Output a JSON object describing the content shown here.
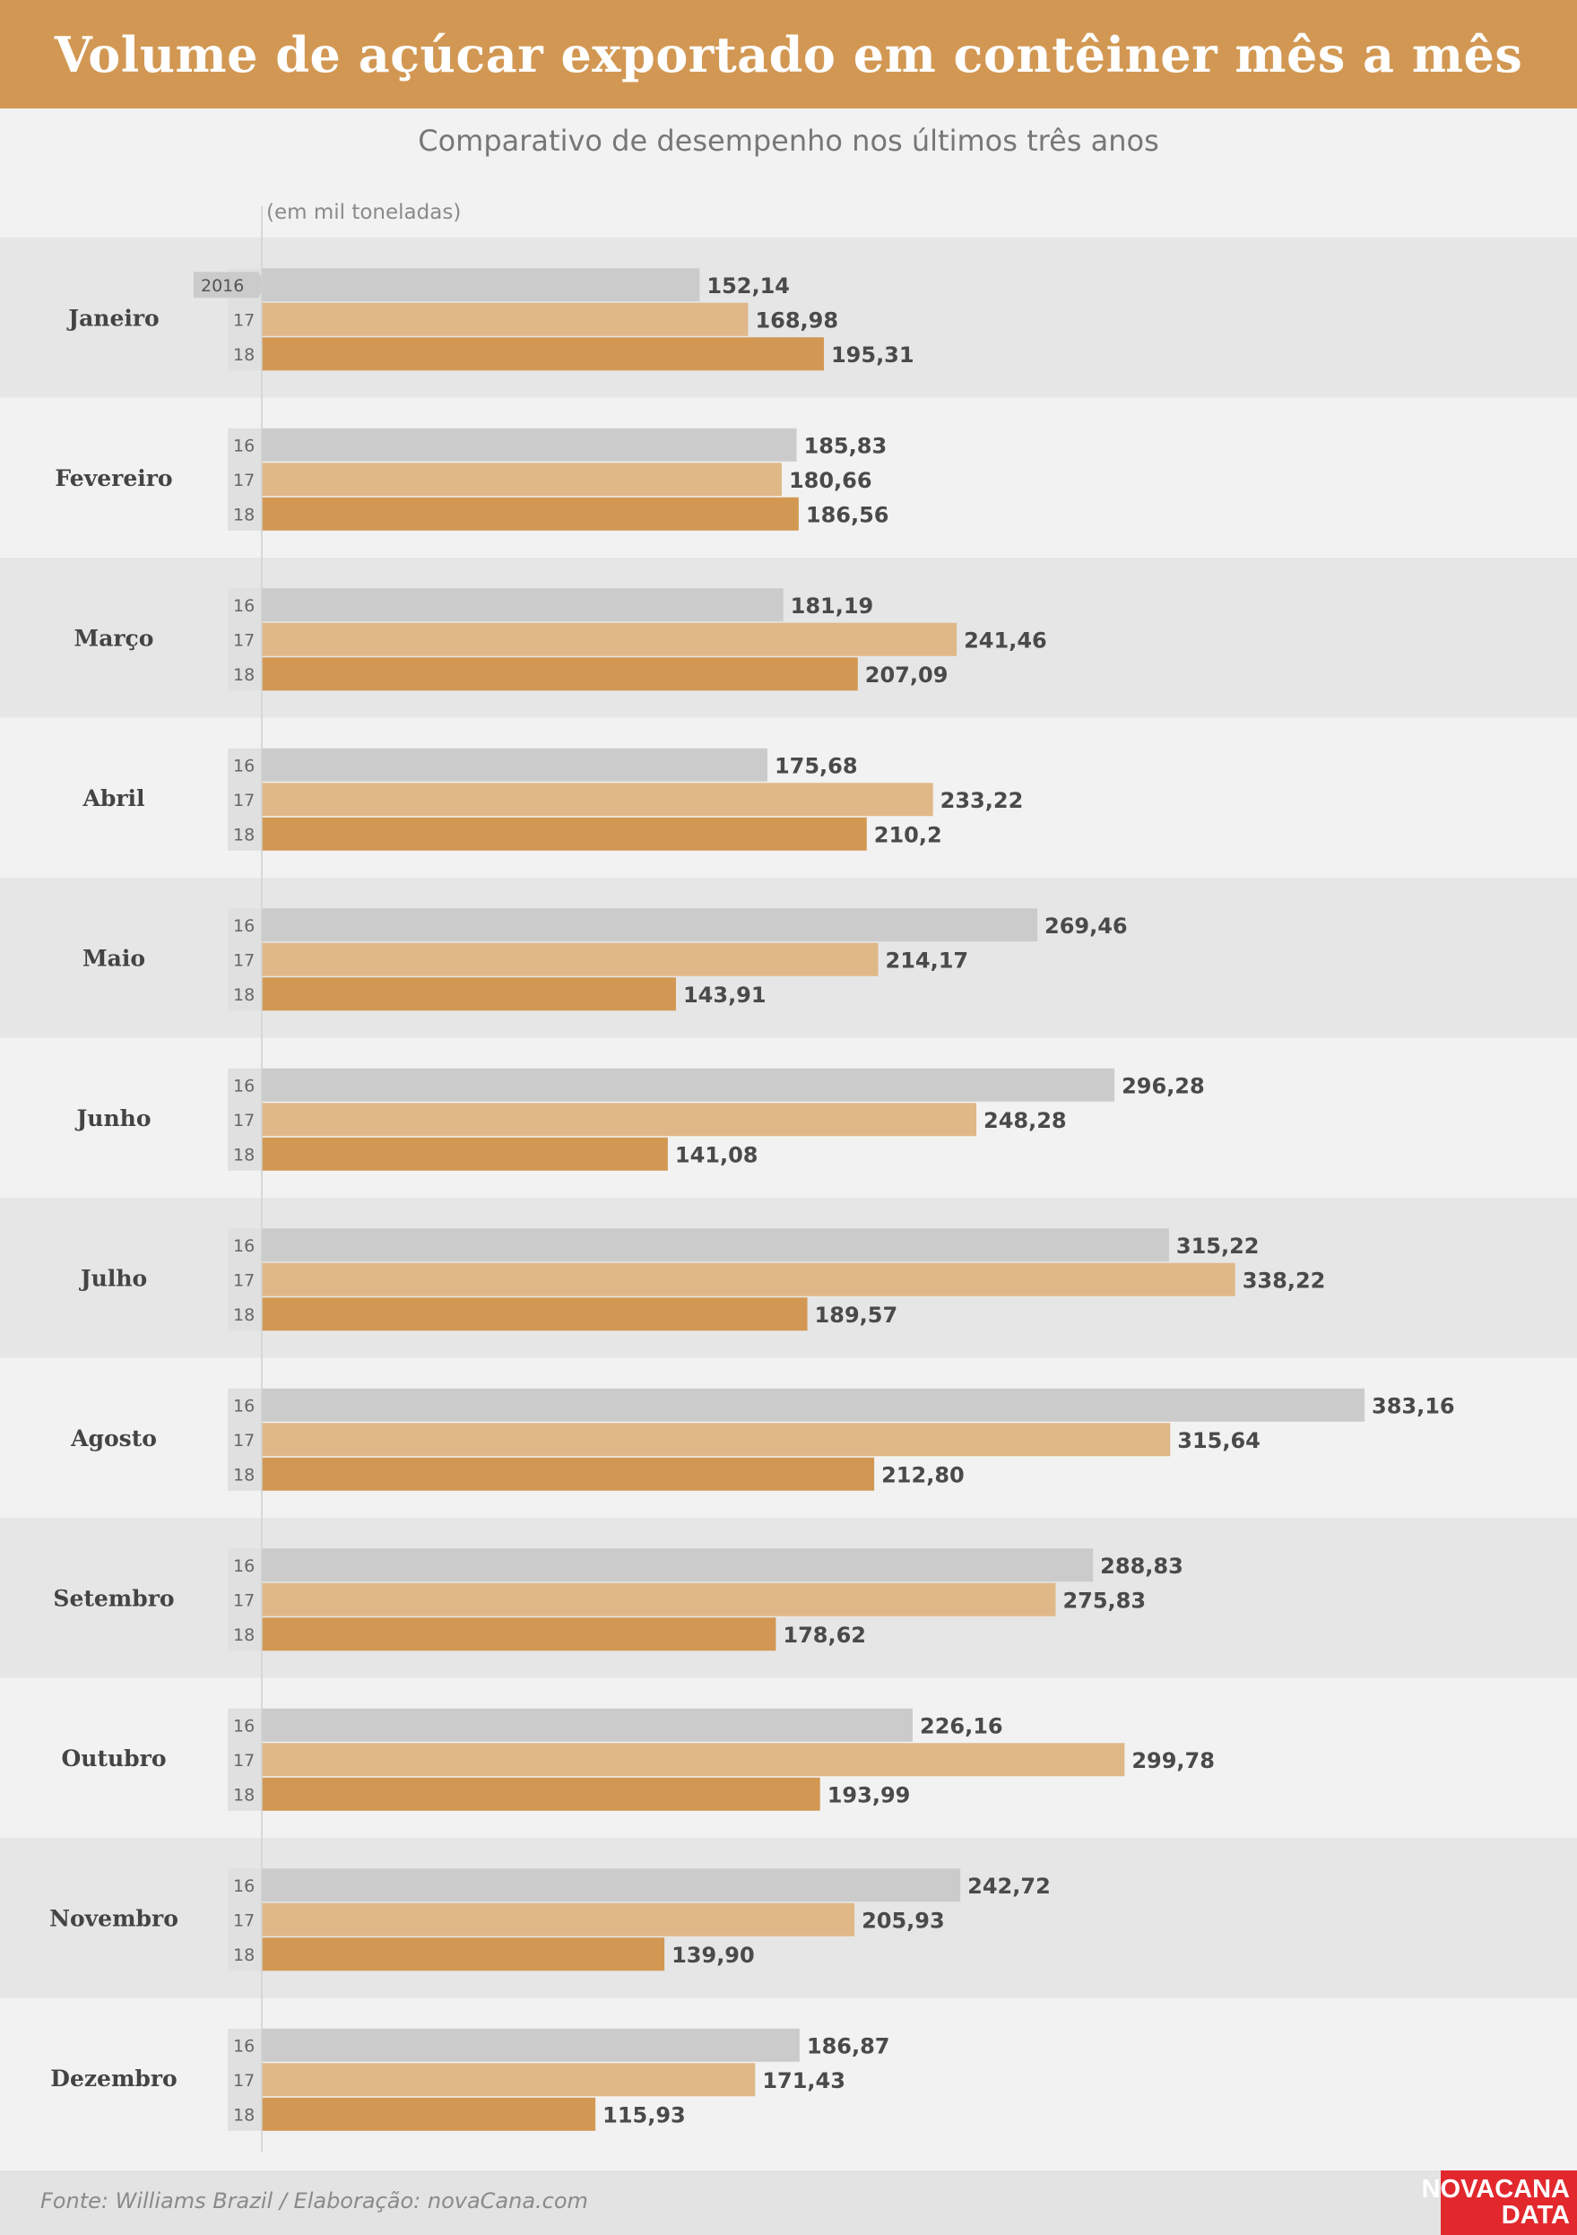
{
  "title": "Volume de açúcar exportado em contêiner mês a mês",
  "subtitle": "Comparativo de desempenho nos últimos três anos",
  "unit_note": "(em mil toneladas)",
  "source": "Fonte: Williams Brazil / Elaboração: novaCana.com",
  "logo": {
    "line1": "NOVACANA",
    "line2": "DATA"
  },
  "colors": {
    "header_bg": "#d29853",
    "series_2016": "#cbcbcb",
    "series_2017": "#e0b888",
    "series_2018": "#d29853",
    "band_dark": "#e6e6e6",
    "band_light": "#f2f2f2",
    "logo_bg": "#e2282d"
  },
  "chart_data": {
    "type": "bar",
    "orientation": "horizontal",
    "unit": "mil toneladas",
    "categories": [
      "Janeiro",
      "Fevereiro",
      "Março",
      "Abril",
      "Maio",
      "Junho",
      "Julho",
      "Agosto",
      "Setembro",
      "Outubro",
      "Novembro",
      "Dezembro"
    ],
    "series": [
      {
        "year_label_first": "2016",
        "year_label": "16",
        "color": "#cbcbcb",
        "values": [
          152.14,
          185.83,
          181.19,
          175.68,
          269.46,
          296.28,
          315.22,
          383.16,
          288.83,
          226.16,
          242.72,
          186.87
        ],
        "labels": [
          "152,14",
          "185,83",
          "181,19",
          "175,68",
          "269,46",
          "296,28",
          "315,22",
          "383,16",
          "288,83",
          "226,16",
          "242,72",
          "186,87"
        ]
      },
      {
        "year_label_first": "17",
        "year_label": "17",
        "color": "#e0b888",
        "values": [
          168.98,
          180.66,
          241.46,
          233.22,
          214.17,
          248.28,
          338.22,
          315.64,
          275.83,
          299.78,
          205.93,
          171.43
        ],
        "labels": [
          "168,98",
          "180,66",
          "241,46",
          "233,22",
          "214,17",
          "248,28",
          "338,22",
          "315,64",
          "275,83",
          "299,78",
          "205,93",
          "171,43"
        ]
      },
      {
        "year_label_first": "18",
        "year_label": "18",
        "color": "#d29853",
        "values": [
          195.31,
          186.56,
          207.09,
          210.2,
          143.91,
          141.08,
          189.57,
          212.8,
          178.62,
          193.99,
          139.9,
          115.93
        ],
        "labels": [
          "195,31",
          "186,56",
          "207,09",
          "210,2",
          "143,91",
          "141,08",
          "189,57",
          "212,80",
          "178,62",
          "193,99",
          "139,90",
          "115,93"
        ]
      }
    ],
    "grid": false,
    "legend": "none"
  }
}
